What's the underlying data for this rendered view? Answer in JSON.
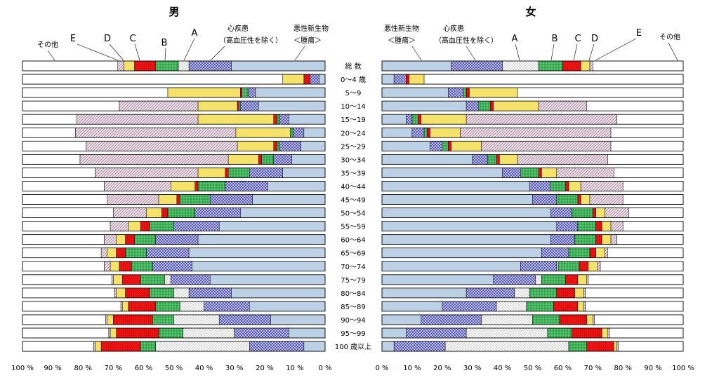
{
  "titles": {
    "male": "男",
    "female": "女"
  },
  "ages": [
    "総 数",
    "0～4 歳",
    "5～9",
    "10～14",
    "15～19",
    "20～24",
    "25～29",
    "30～34",
    "35～39",
    "40～44",
    "45～49",
    "50～54",
    "55～59",
    "60～64",
    "65～69",
    "70～74",
    "75～79",
    "80～84",
    "85～89",
    "90～94",
    "95～99",
    "100 歳以上"
  ],
  "axis_ticks_male": [
    "100 %",
    "90 %",
    "80 %",
    "70 %",
    "60 %",
    "50 %",
    "40 %",
    "30 %",
    "20 %",
    "10 %",
    "0 %"
  ],
  "axis_ticks_female": [
    "0 %",
    "10 %",
    "20 %",
    "30 %",
    "40 %",
    "50 %",
    "60 %",
    "70 %",
    "80 %",
    "90 %",
    "100 %"
  ],
  "legend_male": {
    "sonota": "その他",
    "E": "E",
    "D": "D",
    "C": "C",
    "B": "B",
    "A": "A",
    "heart": [
      "心疾患",
      "（高血圧性を除く）"
    ],
    "cancer": [
      "悪性新生物",
      "＜腫瘍＞"
    ]
  },
  "legend_female": {
    "cancer": [
      "悪性新生物",
      "＜腫瘍＞"
    ],
    "heart": [
      "心疾患",
      "（高血圧性を除く）"
    ],
    "A": "A",
    "B": "B",
    "C": "C",
    "D": "D",
    "E": "E",
    "sonota": "その他"
  },
  "colors": {
    "cancer": "#bcd0e6",
    "heart": "#1c1c8c",
    "A": "#ffffff",
    "B": "#1a9a3a",
    "C": "#ee1111",
    "D": "#f5e26a",
    "E": "#b0809a",
    "sonota": "#ffffff"
  },
  "chart_data": {
    "type": "bar",
    "stacked": true,
    "unit": "%",
    "series_order": [
      "悪性新生物＜腫瘍＞",
      "心疾患（高血圧性を除く）",
      "A",
      "B",
      "C",
      "D",
      "E",
      "その他"
    ],
    "categories": [
      "総 数",
      "0～4 歳",
      "5～9",
      "10～14",
      "15～19",
      "20～24",
      "25～29",
      "30～34",
      "35～39",
      "40～44",
      "45～49",
      "50～54",
      "55～59",
      "60～64",
      "65～69",
      "70～74",
      "75～79",
      "80～84",
      "85～89",
      "90～94",
      "95～99",
      "100 歳以上"
    ],
    "male": [
      [
        31,
        14,
        3.5,
        7.5,
        7,
        3.5,
        2,
        31.5
      ],
      [
        2,
        3,
        0,
        0,
        2,
        7,
        0,
        86
      ],
      [
        23,
        2.5,
        0,
        2,
        0.5,
        24,
        0,
        48
      ],
      [
        22,
        6,
        0,
        0.5,
        0.5,
        13,
        26,
        32
      ],
      [
        12,
        3,
        0,
        1,
        1,
        25,
        40,
        18
      ],
      [
        7,
        3.5,
        0,
        1,
        0,
        18,
        53,
        17.5
      ],
      [
        8,
        7,
        0,
        1,
        1,
        12,
        50,
        21
      ],
      [
        11,
        6,
        0,
        4,
        1,
        10,
        49,
        19
      ],
      [
        14,
        11,
        0,
        7,
        1,
        9,
        34,
        24
      ],
      [
        19,
        14,
        0,
        9,
        1,
        8,
        22,
        27
      ],
      [
        24,
        14,
        0,
        10,
        1,
        6,
        17,
        28
      ],
      [
        28,
        15,
        0,
        9,
        2,
        5,
        11,
        30
      ],
      [
        35,
        15,
        0,
        8,
        3,
        4,
        6,
        29
      ],
      [
        42,
        14,
        0,
        7,
        3,
        3,
        4,
        27
      ],
      [
        45,
        14,
        0,
        7,
        3,
        3,
        2,
        26
      ],
      [
        44,
        13,
        0,
        7,
        4,
        3,
        2,
        27
      ],
      [
        38,
        13,
        2,
        8,
        6,
        3,
        0.5,
        29.5
      ],
      [
        31,
        14,
        5,
        8,
        8,
        3,
        0.5,
        30.5
      ],
      [
        25,
        15,
        8,
        8,
        9,
        2,
        0.5,
        32.5
      ],
      [
        18,
        17,
        15,
        7,
        13,
        2,
        0.5,
        27.5
      ],
      [
        12,
        18,
        17,
        8,
        14,
        2,
        0.5,
        28.5
      ],
      [
        7,
        18,
        31,
        5,
        13,
        2,
        0.5,
        23.5
      ]
    ],
    "female": [
      [
        23,
        17,
        12,
        8,
        6,
        3,
        1,
        30
      ],
      [
        4,
        4,
        0,
        0,
        1,
        5,
        0,
        86
      ],
      [
        22,
        5,
        0,
        1,
        1,
        16,
        0,
        55
      ],
      [
        28,
        4,
        0,
        4,
        1,
        15,
        16,
        32
      ],
      [
        8,
        2,
        0,
        2,
        1,
        15,
        50,
        22
      ],
      [
        10,
        4,
        0,
        1,
        1,
        10,
        50,
        24
      ],
      [
        16,
        4,
        0,
        2,
        1,
        10,
        43,
        24
      ],
      [
        30,
        5,
        0,
        3,
        1,
        6,
        30,
        25
      ],
      [
        40,
        6,
        0,
        6,
        1,
        5,
        19,
        23
      ],
      [
        49,
        7,
        0,
        5,
        1,
        4,
        14,
        20
      ],
      [
        50,
        8,
        0,
        7,
        1,
        3,
        11,
        20
      ],
      [
        56,
        7,
        0,
        7,
        1,
        3,
        8,
        18
      ],
      [
        58,
        7,
        0,
        6,
        2,
        3,
        4,
        20
      ],
      [
        56,
        8,
        0,
        7,
        2,
        3,
        2,
        22
      ],
      [
        53,
        9,
        0,
        7,
        2,
        3,
        1,
        25
      ],
      [
        46,
        12,
        0.5,
        7,
        3,
        3,
        1,
        27.5
      ],
      [
        37,
        14,
        2,
        8,
        4,
        3,
        0.5,
        31.5
      ],
      [
        28,
        16,
        5,
        9,
        6,
        3,
        0.5,
        32.5
      ],
      [
        20,
        18,
        10,
        9,
        8,
        2,
        0.5,
        32.5
      ],
      [
        13,
        20,
        17,
        9,
        9,
        2,
        0.5,
        29.5
      ],
      [
        8,
        20,
        27,
        8,
        10,
        2,
        0.5,
        24.5
      ],
      [
        4,
        17,
        41,
        6,
        9,
        1,
        0.5,
        21.5
      ]
    ],
    "xlim": [
      0,
      100
    ],
    "grid": false
  }
}
